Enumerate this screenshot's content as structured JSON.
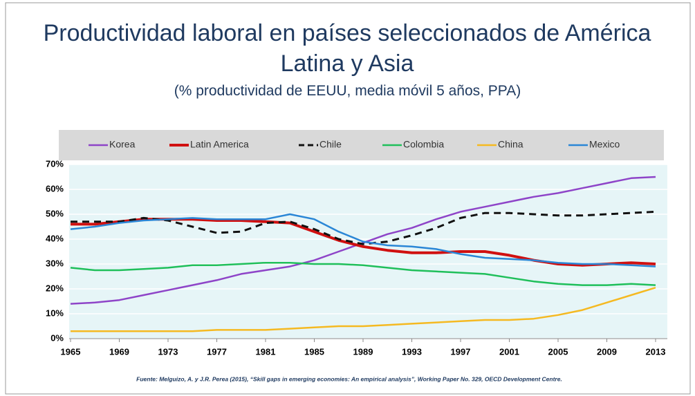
{
  "chart_data": {
    "type": "line",
    "title": "Productividad laboral en países seleccionados de América Latina y Asia",
    "subtitle": "(% productividad de EEUU, media móvil 5 años, PPA)",
    "source": "Fuente: Melguizo, A. y J.R. Perea (2015), “Skill gaps in emerging economies: An empirical analysis”,  Working Paper No. 329, OECD Development Centre.",
    "x": [
      1965,
      1967,
      1969,
      1971,
      1973,
      1975,
      1977,
      1979,
      1981,
      1983,
      1985,
      1987,
      1989,
      1991,
      1993,
      1995,
      1997,
      1999,
      2001,
      2003,
      2005,
      2007,
      2009,
      2011,
      2013
    ],
    "xlim": [
      1965,
      2013
    ],
    "xticks": [
      1965,
      1969,
      1973,
      1977,
      1981,
      1985,
      1989,
      1993,
      1997,
      2001,
      2005,
      2009,
      2013
    ],
    "ylim": [
      0,
      70
    ],
    "yticks": [
      {
        "value": 0,
        "label": "0%"
      },
      {
        "value": 10,
        "label": "10%"
      },
      {
        "value": 20,
        "label": "20%"
      },
      {
        "value": 30,
        "label": "30%"
      },
      {
        "value": 40,
        "label": "40%"
      },
      {
        "value": 50,
        "label": "50%"
      },
      {
        "value": 60,
        "label": "60%"
      },
      {
        "value": 70,
        "label": "70%"
      }
    ],
    "grid": true,
    "legend": "top",
    "series": [
      {
        "name": "Korea",
        "color": "#8e44c8",
        "width": 2.5,
        "values": [
          14,
          14.5,
          15.5,
          17.5,
          19.5,
          21.5,
          23.5,
          26,
          27.5,
          29,
          31.5,
          35,
          38.5,
          42,
          44.5,
          48,
          51,
          53,
          55,
          57,
          58.5,
          60.5,
          62.5,
          64.5,
          65
        ]
      },
      {
        "name": "Latin America",
        "color": "#d01010",
        "width": 4,
        "values": [
          46,
          46,
          47,
          48,
          48,
          48,
          47.5,
          47.5,
          47,
          46.5,
          43,
          39.5,
          37,
          35.5,
          34.5,
          34.5,
          35,
          35,
          33.5,
          31.5,
          30,
          29.5,
          30,
          30.5,
          30
        ]
      },
      {
        "name": "Chile",
        "color": "#111111",
        "width": 3,
        "style": "dashed",
        "values": [
          47,
          47,
          47,
          48.5,
          47.5,
          45,
          42.5,
          43,
          46.5,
          47,
          44,
          40,
          38,
          39,
          41.5,
          44.5,
          48.5,
          50.5,
          50.5,
          50,
          49.5,
          49.5,
          50,
          50.5,
          51
        ]
      },
      {
        "name": "Colombia",
        "color": "#1fbf5a",
        "width": 2.5,
        "values": [
          28.5,
          27.5,
          27.5,
          28,
          28.5,
          29.5,
          29.5,
          30,
          30.5,
          30.5,
          30,
          30,
          29.5,
          28.5,
          27.5,
          27,
          26.5,
          26,
          24.5,
          23,
          22,
          21.5,
          21.5,
          22,
          21.5
        ]
      },
      {
        "name": "China",
        "color": "#f5b921",
        "width": 2.5,
        "values": [
          3,
          3,
          3,
          3,
          3,
          3,
          3.5,
          3.5,
          3.5,
          4,
          4.5,
          5,
          5,
          5.5,
          6,
          6.5,
          7,
          7.5,
          7.5,
          8,
          9.5,
          11.5,
          14.5,
          17.5,
          20.5
        ]
      },
      {
        "name": "Mexico",
        "color": "#2a86d6",
        "width": 2.5,
        "values": [
          44,
          45,
          46.5,
          47.5,
          48,
          48.5,
          48,
          48,
          48,
          50,
          48,
          43,
          39,
          37.5,
          37,
          36,
          34,
          32.5,
          32,
          31.5,
          30.5,
          30,
          30,
          29.5,
          29
        ]
      }
    ]
  }
}
